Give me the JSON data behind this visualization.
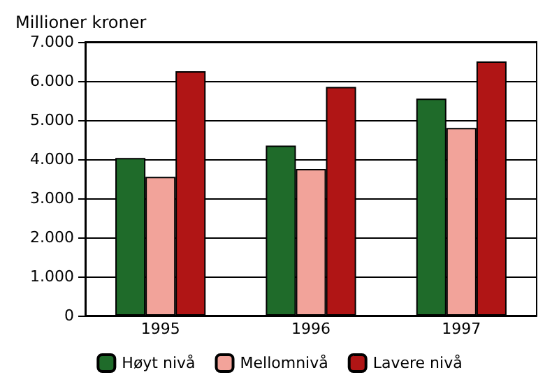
{
  "chart_data": {
    "type": "bar",
    "ylabel": "Millioner kroner",
    "categories": [
      "1995",
      "1996",
      "1997"
    ],
    "series": [
      {
        "name": "Høyt nivå",
        "color": "#1f6b2a",
        "values": [
          4030,
          4350,
          5550
        ]
      },
      {
        "name": "Mellomnivå",
        "color": "#f2a39a",
        "values": [
          3550,
          3750,
          4800
        ]
      },
      {
        "name": "Lavere nivå",
        "color": "#b01515",
        "values": [
          6250,
          5850,
          6500
        ]
      }
    ],
    "ylim": [
      0,
      7000
    ],
    "yticks": [
      {
        "value": 0,
        "label": "0"
      },
      {
        "value": 1000,
        "label": "1.000"
      },
      {
        "value": 2000,
        "label": "2.000"
      },
      {
        "value": 3000,
        "label": "3.000"
      },
      {
        "value": 4000,
        "label": "4.000"
      },
      {
        "value": 5000,
        "label": "5.000"
      },
      {
        "value": 6000,
        "label": "6.000"
      },
      {
        "value": 7000,
        "label": "7.000"
      }
    ],
    "grid": "y",
    "legend": "bottom"
  }
}
